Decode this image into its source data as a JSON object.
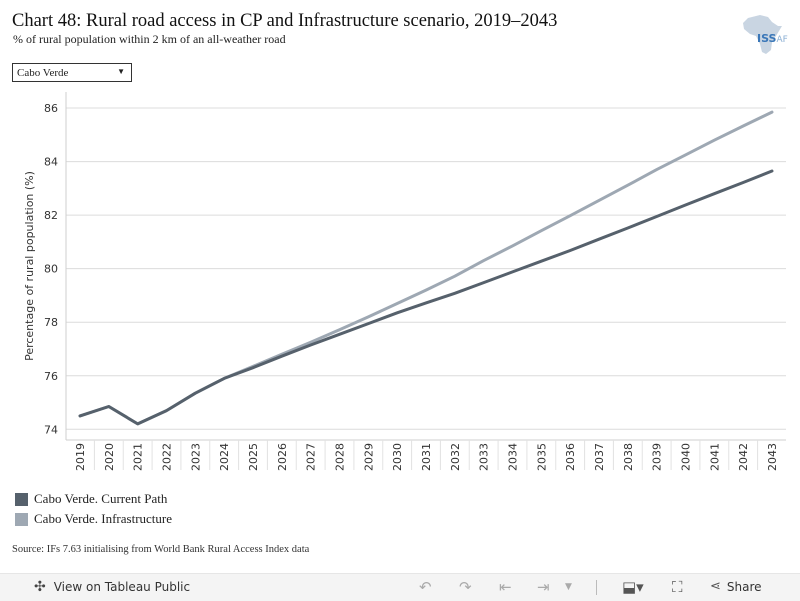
{
  "header": {
    "title": "Chart 48: Rural road access in CP and Infrastructure scenario, 2019–2043",
    "subtitle": "% of rural population within 2 km of an all-weather road"
  },
  "logo": {
    "text_main": "ISS",
    "text_sub": "AF",
    "icon": "africa-map-icon"
  },
  "filter": {
    "selected": "Cabo Verde"
  },
  "chart_data": {
    "type": "line",
    "ylabel": "Percentage of rural population (%)",
    "xlabel": "",
    "ylim": [
      73.6,
      86.6
    ],
    "yticks": [
      74,
      76,
      78,
      80,
      82,
      84,
      86
    ],
    "x": [
      "2019",
      "2020",
      "2021",
      "2022",
      "2023",
      "2024",
      "2025",
      "2026",
      "2027",
      "2028",
      "2029",
      "2030",
      "2031",
      "2032",
      "2033",
      "2034",
      "2035",
      "2036",
      "2037",
      "2038",
      "2039",
      "2040",
      "2041",
      "2042",
      "2043"
    ],
    "grid": true,
    "legend_position": "bottom-left",
    "series": [
      {
        "name": "Cabo Verde. Infrastructure",
        "color": "#9ea8b3",
        "values": [
          74.5,
          74.85,
          74.2,
          74.7,
          75.35,
          75.9,
          76.35,
          76.8,
          77.25,
          77.72,
          78.2,
          78.7,
          79.2,
          79.72,
          80.3,
          80.85,
          81.42,
          81.98,
          82.55,
          83.12,
          83.7,
          84.25,
          84.8,
          85.33,
          85.85
        ]
      },
      {
        "name": "Cabo Verde. Current Path",
        "color": "#56616c",
        "values": [
          74.5,
          74.85,
          74.2,
          74.7,
          75.35,
          75.9,
          76.3,
          76.73,
          77.15,
          77.55,
          77.95,
          78.35,
          78.72,
          79.08,
          79.48,
          79.88,
          80.28,
          80.68,
          81.1,
          81.52,
          81.95,
          82.38,
          82.8,
          83.22,
          83.65
        ]
      }
    ]
  },
  "legend": [
    {
      "label": "Cabo Verde. Current Path",
      "color": "#56616c"
    },
    {
      "label": "Cabo Verde. Infrastructure",
      "color": "#9ea8b3"
    }
  ],
  "source": "Source: IFs 7.63 initialising from World Bank Rural Access Index data",
  "footer": {
    "view_label": "View on Tableau Public",
    "share_label": "Share",
    "icons": [
      "tableau-icon",
      "undo-icon",
      "redo-icon",
      "revert-icon",
      "refresh-icon",
      "download-icon",
      "fullscreen-icon",
      "share-icon"
    ]
  }
}
